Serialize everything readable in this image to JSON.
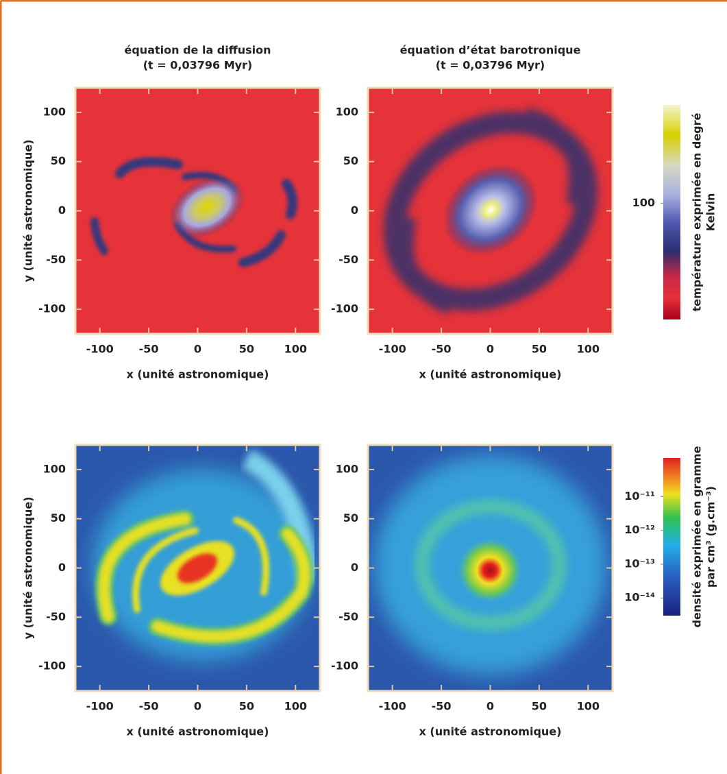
{
  "chart_data": [
    {
      "type": "heatmap",
      "title": "équation de la diffusion",
      "subtitle": "(t = 0,03796 Myr)",
      "xlabel": "x (unité astronomique)",
      "ylabel": "y (unité astronomique)",
      "xlim": [
        -125,
        125
      ],
      "ylim": [
        -125,
        125
      ],
      "xticks": [
        -100,
        -50,
        0,
        50,
        100
      ],
      "yticks": [
        -100,
        -50,
        0,
        50,
        100
      ]
    },
    {
      "type": "heatmap",
      "title": "équation d’état barotronique",
      "subtitle": "(t = 0,03796 Myr)",
      "xlabel": "x (unité astronomique)",
      "xlim": [
        -125,
        125
      ],
      "ylim": [
        -125,
        125
      ],
      "xticks": [
        -100,
        -50,
        0,
        50,
        100
      ],
      "yticks": [
        -100,
        -50,
        0,
        50,
        100
      ],
      "colorbar": {
        "label": [
          "température exprimée en degré",
          "Kelvin"
        ],
        "log": true,
        "lim": [
          12,
          600
        ],
        "ticks": [
          100
        ]
      }
    },
    {
      "type": "heatmap",
      "xlabel": "x (unité astronomique)",
      "ylabel": "y (unité astronomique)",
      "xlim": [
        -125,
        125
      ],
      "ylim": [
        -125,
        125
      ],
      "xticks": [
        -100,
        -50,
        0,
        50,
        100
      ],
      "yticks": [
        -100,
        -50,
        0,
        50,
        100
      ]
    },
    {
      "type": "heatmap",
      "xlabel": "x (unité astronomique)",
      "xlim": [
        -125,
        125
      ],
      "ylim": [
        -125,
        125
      ],
      "xticks": [
        -100,
        -50,
        0,
        50,
        100
      ],
      "yticks": [
        -100,
        -50,
        0,
        50,
        100
      ],
      "colorbar": {
        "label": [
          "densité exprimée en gramme",
          "par cm³ (g.cm⁻³)"
        ],
        "log": true,
        "lim": [
          3e-15,
          1.4e-10
        ],
        "ticks": [
          {
            "value": 1e-11,
            "label": "10⁻¹¹"
          },
          {
            "value": 1e-12,
            "label": "10⁻¹²"
          },
          {
            "value": 1e-13,
            "label": "10⁻¹³"
          },
          {
            "value": 1e-14,
            "label": "10⁻¹⁴"
          }
        ]
      }
    }
  ]
}
